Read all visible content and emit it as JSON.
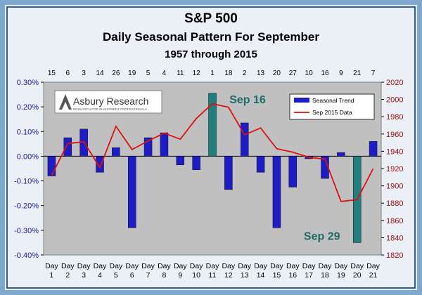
{
  "chart_data": {
    "type": "bar",
    "title": "S&P 500",
    "subtitle": "Daily Seasonal Pattern For September",
    "subtitle2": "1957 through 2015",
    "categories": [
      "Day 1",
      "Day 2",
      "Day 3",
      "Day 4",
      "Day 5",
      "Day 6",
      "Day 7",
      "Day 8",
      "Day 9",
      "Day 10",
      "Day 11",
      "Day 12",
      "Day 13",
      "Day 14",
      "Day 15",
      "Day 16",
      "Day 17",
      "Day 18",
      "Day 19",
      "Day 20",
      "Day 21"
    ],
    "date_labels": [
      "15",
      "6",
      "3",
      "14",
      "26",
      "19",
      "5",
      "4",
      "11",
      "12",
      "1",
      "18",
      "2",
      "13",
      "20",
      "27",
      "10",
      "16",
      "9",
      "21",
      "7"
    ],
    "ylim": [
      -0.4,
      0.3
    ],
    "y_ticks": [
      "-0.40%",
      "-0.30%",
      "-0.20%",
      "-0.10%",
      "0.00%",
      "0.10%",
      "0.20%",
      "0.30%"
    ],
    "y2lim": [
      1820,
      2020
    ],
    "y2_ticks": [
      "1820",
      "1840",
      "1860",
      "1880",
      "1900",
      "1920",
      "1940",
      "1960",
      "1980",
      "2000",
      "2020"
    ],
    "series": [
      {
        "name": "Seasonal Trend",
        "type": "bar",
        "axis": "left",
        "color": "#1c1cc8",
        "values": [
          -0.08,
          0.075,
          0.11,
          -0.065,
          0.035,
          -0.29,
          0.075,
          0.095,
          -0.035,
          -0.055,
          0.255,
          -0.135,
          0.135,
          -0.065,
          -0.29,
          -0.125,
          -0.01,
          -0.09,
          0.015,
          -0.35,
          0.06
        ]
      },
      {
        "name": "Sep 2015 Data",
        "type": "line",
        "axis": "right",
        "color": "#e01010",
        "values": [
          1912,
          1949,
          1951,
          1921,
          1969,
          1942,
          1952,
          1961,
          1954,
          1978,
          1995,
          1991,
          1959,
          1967,
          1943,
          1939,
          1933,
          1931,
          1882,
          1884,
          1920
        ]
      }
    ],
    "highlight_color": "#1f7f7f",
    "highlights": [
      {
        "index": 10,
        "label": "Sep 16"
      },
      {
        "index": 19,
        "label": "Sep 29"
      }
    ],
    "logo": {
      "name": "Asbury Research",
      "tagline": "RESEARCH FOR INVESTMENT PROFESSIONALS"
    },
    "legend_position": "top-right"
  }
}
